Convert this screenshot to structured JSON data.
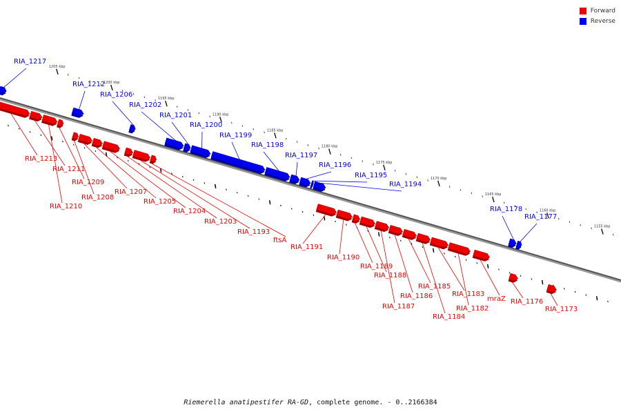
{
  "legend": {
    "forward_label": "Forward",
    "reverse_label": "Reverse",
    "forward_color": "#ee0000",
    "reverse_color": "#0000ee"
  },
  "caption": {
    "organism": "Riemerella anatipestifer RA-GD",
    "rest": ", complete genome. - 0..2166384"
  },
  "ticks": [
    {
      "kbp": 1205,
      "label": "1205 kbp"
    },
    {
      "kbp": 1200,
      "label": "1200 kbp"
    },
    {
      "kbp": 1195,
      "label": "1195 kbp"
    },
    {
      "kbp": 1190,
      "label": "1190 kbp"
    },
    {
      "kbp": 1185,
      "label": "1185 kbp"
    },
    {
      "kbp": 1180,
      "label": "1180 kbp"
    },
    {
      "kbp": 1175,
      "label": "1175 kbp"
    },
    {
      "kbp": 1170,
      "label": "1170 kbp"
    },
    {
      "kbp": 1165,
      "label": "1165 kbp"
    },
    {
      "kbp": 1160,
      "label": "1160 kbp"
    },
    {
      "kbp": 1155,
      "label": "1155 kbp"
    }
  ],
  "genes": [
    {
      "name": "RIA_1217",
      "strand": "reverse"
    },
    {
      "name": "RIA_1212",
      "strand": "reverse"
    },
    {
      "name": "RIA_1206",
      "strand": "reverse"
    },
    {
      "name": "RIA_1202",
      "strand": "reverse"
    },
    {
      "name": "RIA_1201",
      "strand": "reverse"
    },
    {
      "name": "RIA_1200",
      "strand": "reverse"
    },
    {
      "name": "RIA_1199",
      "strand": "reverse"
    },
    {
      "name": "RIA_1198",
      "strand": "reverse"
    },
    {
      "name": "RIA_1197",
      "strand": "reverse"
    },
    {
      "name": "RIA_1196",
      "strand": "reverse"
    },
    {
      "name": "RIA_1195",
      "strand": "reverse"
    },
    {
      "name": "RIA_1194",
      "strand": "reverse"
    },
    {
      "name": "RIA_1178",
      "strand": "reverse"
    },
    {
      "name": "RIA_1177",
      "strand": "reverse"
    },
    {
      "name": "RIA_1213",
      "strand": "forward"
    },
    {
      "name": "RIA_1211",
      "strand": "forward"
    },
    {
      "name": "RIA_1210",
      "strand": "forward"
    },
    {
      "name": "RIA_1209",
      "strand": "forward"
    },
    {
      "name": "RIA_1208",
      "strand": "forward"
    },
    {
      "name": "RIA_1207",
      "strand": "forward"
    },
    {
      "name": "RIA_1205",
      "strand": "forward"
    },
    {
      "name": "RIA_1204",
      "strand": "forward"
    },
    {
      "name": "RIA_1203",
      "strand": "forward"
    },
    {
      "name": "RIA_1193",
      "strand": "forward"
    },
    {
      "name": "ftsA",
      "strand": "forward"
    },
    {
      "name": "RIA_1191",
      "strand": "forward"
    },
    {
      "name": "RIA_1190",
      "strand": "forward"
    },
    {
      "name": "RIA_1189",
      "strand": "forward"
    },
    {
      "name": "RIA_1188",
      "strand": "forward"
    },
    {
      "name": "RIA_1187",
      "strand": "forward"
    },
    {
      "name": "RIA_1186",
      "strand": "forward"
    },
    {
      "name": "RIA_1185",
      "strand": "forward"
    },
    {
      "name": "RIA_1184",
      "strand": "forward"
    },
    {
      "name": "RIA_1183",
      "strand": "forward"
    },
    {
      "name": "RIA_1182",
      "strand": "forward"
    },
    {
      "name": "mraZ",
      "strand": "forward"
    },
    {
      "name": "RIA_1176",
      "strand": "forward"
    },
    {
      "name": "RIA_1173",
      "strand": "forward"
    }
  ]
}
